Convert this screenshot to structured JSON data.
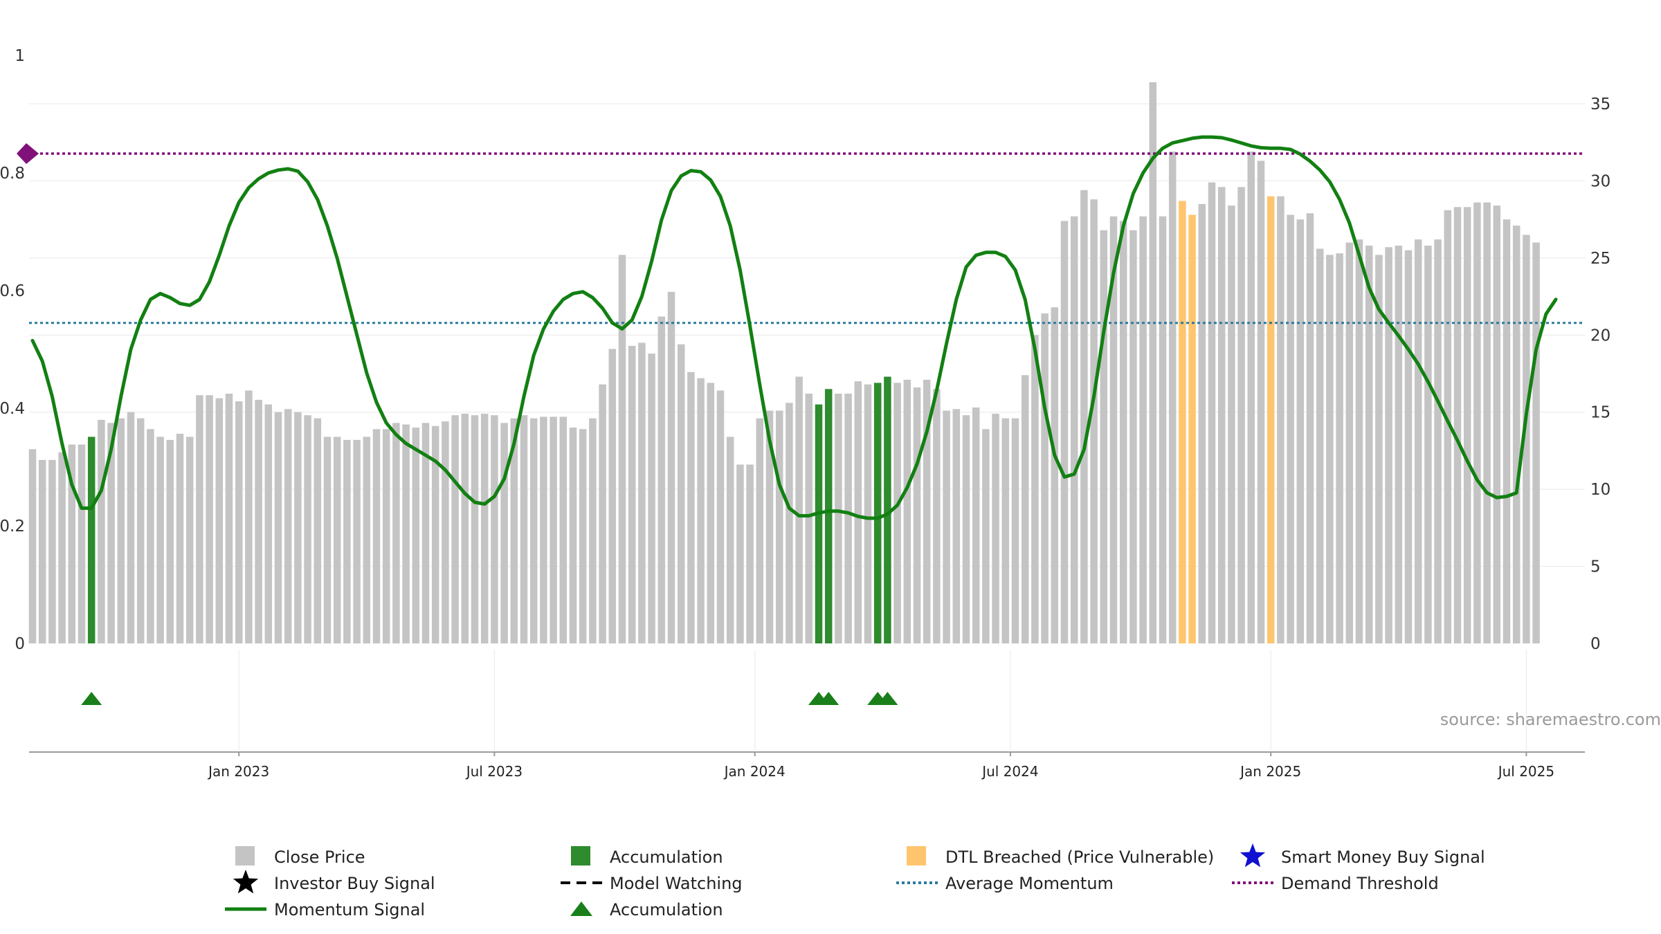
{
  "chart_data": {
    "type": "bar",
    "title": "",
    "xlabel": "",
    "ylabel_left": "",
    "ylabel_right": "",
    "ylim_left": [
      0,
      1
    ],
    "ylim_right": [
      0,
      35
    ],
    "left_ticks": [
      "0",
      "0.2",
      "0.4",
      "0.6",
      "0.8",
      "1"
    ],
    "right_ticks": [
      "0",
      "5",
      "10",
      "15",
      "20",
      "25",
      "30",
      "35"
    ],
    "x_ticks": [
      {
        "label": "Jan 2023",
        "week": 22
      },
      {
        "label": "Jul 2023",
        "week": 48
      },
      {
        "label": "Jan 2024",
        "week": 74.5
      },
      {
        "label": "Jul 2024",
        "week": 100.5
      },
      {
        "label": "Jan 2025",
        "week": 127
      },
      {
        "label": "Jul 2025",
        "week": 153
      }
    ],
    "series": [
      {
        "name": "Close Price",
        "axis": "right",
        "unit": "weekly, one value per week from week 1",
        "values": [
          12.6,
          11.9,
          11.9,
          12.4,
          12.9,
          12.9,
          13.4,
          14.5,
          14.3,
          14.6,
          15.0,
          14.6,
          13.9,
          13.4,
          13.2,
          13.6,
          13.4,
          16.1,
          16.1,
          15.9,
          16.2,
          15.7,
          16.4,
          15.8,
          15.5,
          15.0,
          15.2,
          15.0,
          14.8,
          14.6,
          13.4,
          13.4,
          13.2,
          13.2,
          13.4,
          13.9,
          13.9,
          14.3,
          14.2,
          14.0,
          14.3,
          14.1,
          14.4,
          14.8,
          14.9,
          14.8,
          14.9,
          14.8,
          14.3,
          14.6,
          14.8,
          14.6,
          14.7,
          14.7,
          14.7,
          14.0,
          13.9,
          14.6,
          16.8,
          19.1,
          25.2,
          19.3,
          19.5,
          18.8,
          21.2,
          22.8,
          19.4,
          17.6,
          17.2,
          16.9,
          16.4,
          13.4,
          11.6,
          11.6,
          14.6,
          15.1,
          15.1,
          15.6,
          17.3,
          16.2,
          15.5,
          16.5,
          16.2,
          16.2,
          17.0,
          16.8,
          16.9,
          17.3,
          16.9,
          17.1,
          16.6,
          17.1,
          16.5,
          15.1,
          15.2,
          14.8,
          15.3,
          13.9,
          14.9,
          14.6,
          14.6,
          17.4,
          20.0,
          21.4,
          21.8,
          27.4,
          27.7,
          29.4,
          28.8,
          26.8,
          27.7,
          27.4,
          26.8,
          27.7,
          36.4,
          27.7,
          31.9,
          28.7,
          27.8,
          28.5,
          29.9,
          29.6,
          28.4,
          29.6,
          31.9,
          31.3,
          29.0,
          29.0,
          27.8,
          27.5,
          27.9,
          25.6,
          25.2,
          25.3,
          26.0,
          26.2,
          25.8,
          25.2,
          25.7,
          25.8,
          25.5,
          26.2,
          25.8,
          26.2,
          28.1,
          28.3,
          28.3,
          28.6,
          28.6,
          28.4,
          27.5,
          27.1,
          26.5,
          26.0
        ]
      },
      {
        "name": "Momentum Signal",
        "axis": "left",
        "unit": "weekly, one value per week from week 1",
        "values": [
          0.515,
          0.48,
          0.42,
          0.34,
          0.27,
          0.23,
          0.23,
          0.26,
          0.33,
          0.42,
          0.5,
          0.55,
          0.585,
          0.595,
          0.588,
          0.578,
          0.575,
          0.585,
          0.615,
          0.66,
          0.71,
          0.75,
          0.775,
          0.79,
          0.8,
          0.805,
          0.807,
          0.803,
          0.785,
          0.755,
          0.71,
          0.655,
          0.59,
          0.525,
          0.46,
          0.41,
          0.375,
          0.355,
          0.34,
          0.33,
          0.32,
          0.31,
          0.295,
          0.275,
          0.255,
          0.24,
          0.237,
          0.25,
          0.28,
          0.34,
          0.42,
          0.49,
          0.535,
          0.565,
          0.585,
          0.595,
          0.598,
          0.588,
          0.57,
          0.545,
          0.535,
          0.55,
          0.59,
          0.65,
          0.72,
          0.77,
          0.795,
          0.804,
          0.802,
          0.788,
          0.76,
          0.71,
          0.635,
          0.54,
          0.44,
          0.345,
          0.27,
          0.23,
          0.217,
          0.217,
          0.222,
          0.225,
          0.225,
          0.222,
          0.216,
          0.213,
          0.213,
          0.22,
          0.235,
          0.265,
          0.305,
          0.36,
          0.43,
          0.51,
          0.585,
          0.64,
          0.66,
          0.665,
          0.665,
          0.658,
          0.635,
          0.585,
          0.5,
          0.4,
          0.32,
          0.283,
          0.288,
          0.33,
          0.42,
          0.53,
          0.63,
          0.71,
          0.765,
          0.8,
          0.825,
          0.842,
          0.851,
          0.855,
          0.859,
          0.861,
          0.861,
          0.86,
          0.856,
          0.851,
          0.846,
          0.843,
          0.842,
          0.842,
          0.84,
          0.832,
          0.82,
          0.805,
          0.785,
          0.755,
          0.715,
          0.66,
          0.605,
          0.568,
          0.545,
          0.523,
          0.5,
          0.475,
          0.445,
          0.412,
          0.378,
          0.345,
          0.31,
          0.278,
          0.256,
          0.248,
          0.25,
          0.256,
          0.39,
          0.5,
          0.56,
          0.585
        ]
      },
      {
        "name": "Average Momentum",
        "axis": "left",
        "value": 0.545
      },
      {
        "name": "Demand Threshold",
        "axis": "left",
        "value": 0.833
      },
      {
        "name": "Accumulation",
        "axis": "right",
        "type": "highlighted-bars",
        "weeks": [
          7,
          81,
          82,
          87,
          88
        ]
      },
      {
        "name": "DTL Breached (Price Vulnerable)",
        "axis": "right",
        "type": "highlighted-bars",
        "weeks": [
          118,
          119,
          127
        ]
      },
      {
        "name": "Accumulation",
        "type": "triangle-markers",
        "weeks": [
          7,
          81,
          82,
          87,
          88
        ]
      }
    ],
    "colors": {
      "close_price": "#c4c4c4",
      "accumulation": "#2e8b2e",
      "dtl_breached": "#ffc56e",
      "momentum": "#128012",
      "average_momentum": "#2a7aa0",
      "demand_threshold": "#80107a",
      "marker_triangle": "#1a7f1a",
      "smart_money": "#1010d0"
    },
    "legend": {
      "position": "bottom",
      "items": [
        {
          "label": "Close Price",
          "symbol": "gray-square-icon"
        },
        {
          "label": "Accumulation",
          "symbol": "green-square-icon"
        },
        {
          "label": "DTL Breached (Price Vulnerable)",
          "symbol": "orange-square-icon"
        },
        {
          "label": "Smart Money Buy Signal",
          "symbol": "blue-star-icon"
        },
        {
          "label": "Investor Buy Signal",
          "symbol": "black-star-icon"
        },
        {
          "label": "Model Watching",
          "symbol": "dashed-line-icon"
        },
        {
          "label": "Average Momentum",
          "symbol": "dotted-blue-line-icon"
        },
        {
          "label": "Demand Threshold",
          "symbol": "dotted-purple-line-icon"
        },
        {
          "label": "Momentum Signal",
          "symbol": "green-line-icon"
        },
        {
          "label": "Accumulation",
          "symbol": "green-triangle-icon"
        }
      ]
    },
    "source": "source: sharemaestro.com"
  }
}
